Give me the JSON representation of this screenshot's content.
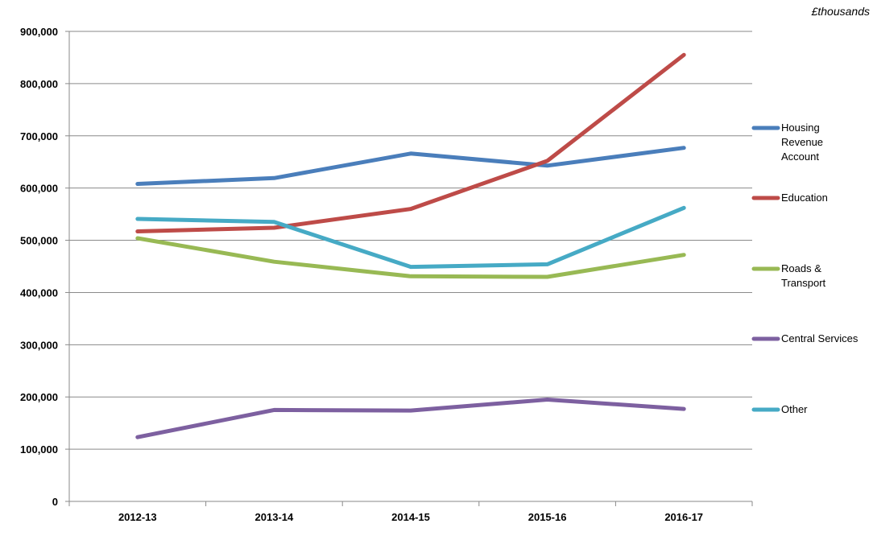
{
  "chart_data": {
    "type": "line",
    "unit_label": "£thousands",
    "categories": [
      "2012-13",
      "2013-14",
      "2014-15",
      "2015-16",
      "2016-17"
    ],
    "yticks": [
      "0",
      "100,000",
      "200,000",
      "300,000",
      "400,000",
      "500,000",
      "600,000",
      "700,000",
      "800,000",
      "900,000"
    ],
    "ylim": [
      0,
      900000
    ],
    "grid": true,
    "legend_position": "right",
    "series": [
      {
        "name": "Housing Revenue Account",
        "legend_lines": [
          "Housing",
          "Revenue",
          "Account"
        ],
        "color": "#4a7ebb",
        "values": [
          608000,
          619000,
          666000,
          643000,
          677000
        ]
      },
      {
        "name": "Education",
        "legend_lines": [
          "Education"
        ],
        "color": "#be4b48",
        "values": [
          517000,
          524000,
          560000,
          652000,
          855000
        ]
      },
      {
        "name": "Roads & Transport",
        "legend_lines": [
          "Roads &",
          "Transport"
        ],
        "color": "#98b954",
        "values": [
          504000,
          459000,
          431000,
          430000,
          472000
        ]
      },
      {
        "name": "Central Services",
        "legend_lines": [
          "Central Services"
        ],
        "color": "#7d60a0",
        "values": [
          123000,
          175000,
          174000,
          195000,
          177000
        ]
      },
      {
        "name": "Other",
        "legend_lines": [
          "Other"
        ],
        "color": "#46aac5",
        "values": [
          541000,
          535000,
          449000,
          454000,
          562000
        ]
      }
    ]
  }
}
